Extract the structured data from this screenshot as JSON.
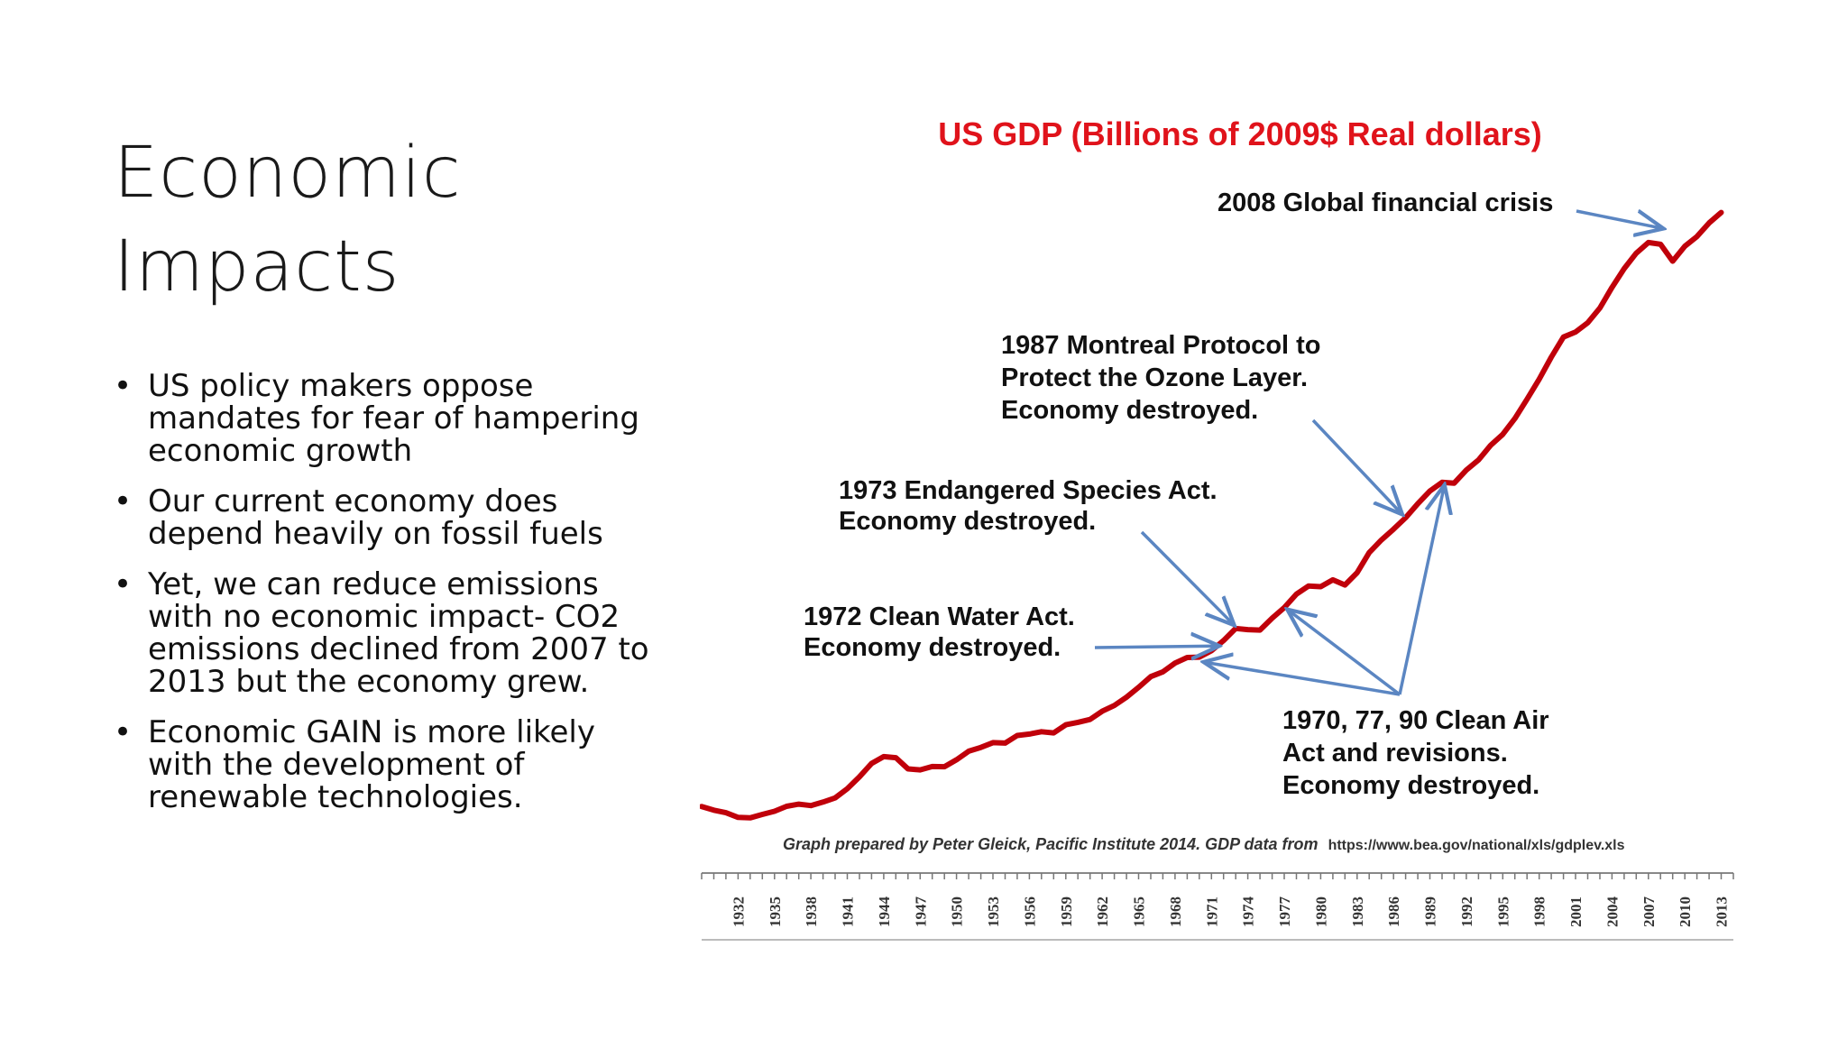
{
  "slide": {
    "title_lines": [
      "Economic",
      "Impacts"
    ],
    "bullets": [
      "US policy makers oppose mandates for fear of hampering economic growth",
      "Our current economy does depend heavily on fossil fuels",
      "Yet, we can reduce emissions with no economic impact- CO2 emissions declined from 2007 to 2013 but the economy grew.",
      "Economic GAIN is more likely with the development of renewable technologies."
    ]
  },
  "chart_data": {
    "type": "line",
    "title": "US GDP (Billions of 2009$ Real dollars)",
    "source": "Graph prepared by Peter Gleick, Pacific Institute 2014. GDP data from",
    "source_url": "https://www.bea.gov/national/xls/gdplev.xls",
    "xlim": [
      1929,
      2014
    ],
    "ylim": [
      0,
      16000
    ],
    "line_color": "#c0000a",
    "arrow_color": "#5b86c2",
    "title_color": "#e0131b",
    "tick_labels": [
      "1932",
      "1935",
      "1938",
      "1941",
      "1944",
      "1947",
      "1950",
      "1953",
      "1956",
      "1959",
      "1962",
      "1965",
      "1968",
      "1971",
      "1974",
      "1977",
      "1980",
      "1983",
      "1986",
      "1989",
      "1992",
      "1995",
      "1998",
      "2001",
      "2004",
      "2007",
      "2010",
      "2013"
    ],
    "series": [
      {
        "x": [
          1929,
          1930,
          1931,
          1932,
          1933,
          1934,
          1935,
          1936,
          1937,
          1938,
          1939,
          1940,
          1941,
          1942,
          1943,
          1944,
          1945,
          1946,
          1947,
          1948,
          1949,
          1950,
          1951,
          1952,
          1953,
          1954,
          1955,
          1956,
          1957,
          1958,
          1959,
          1960,
          1961,
          1962,
          1963,
          1964,
          1965,
          1966,
          1967,
          1968,
          1969,
          1970,
          1971,
          1972,
          1973,
          1974,
          1975,
          1976,
          1977,
          1978,
          1979,
          1980,
          1981,
          1982,
          1983,
          1984,
          1985,
          1986,
          1987,
          1988,
          1989,
          1990,
          1991,
          1992,
          1993,
          1994,
          1995,
          1996,
          1997,
          1998,
          1999,
          2000,
          2001,
          2002,
          2003,
          2004,
          2005,
          2006,
          2007,
          2008,
          2009,
          2010,
          2011,
          2012,
          2013
        ],
        "y": [
          1057,
          966,
          904,
          788,
          778,
          862,
          939,
          1060,
          1114,
          1078,
          1164,
          1266,
          1491,
          1784,
          2110,
          2279,
          2251,
          1978,
          1954,
          2036,
          2030,
          2202,
          2410,
          2503,
          2621,
          2609,
          2796,
          2832,
          2888,
          2859,
          3058,
          3119,
          3190,
          3391,
          3531,
          3734,
          3976,
          4238,
          4355,
          4570,
          4707,
          4717,
          4874,
          5123,
          5418,
          5390,
          5379,
          5670,
          5930,
          6260,
          6459,
          6443,
          6611,
          6484,
          6784,
          7277,
          7586,
          7853,
          8132,
          8475,
          8787,
          9000,
          8980,
          9300,
          9548,
          9906,
          10174,
          10561,
          11034,
          11526,
          12066,
          12560,
          12682,
          12909,
          13271,
          13774,
          14235,
          14615,
          14876,
          14834,
          14418,
          14784,
          15021,
          15355,
          15612
        ]
      }
    ],
    "annotations": [
      {
        "lines": [
          "2008 Global financial  crisis"
        ],
        "points_to": [
          2008
        ]
      },
      {
        "lines": [
          "1987 Montreal Protocol to",
          "Protect the Ozone Layer.",
          "Economy destroyed."
        ],
        "points_to": [
          1987
        ]
      },
      {
        "lines": [
          "1973 Endangered Species Act.",
          "Economy destroyed."
        ],
        "points_to": [
          1973
        ]
      },
      {
        "lines": [
          "1972 Clean Water Act.",
          "Economy destroyed."
        ],
        "points_to": [
          1972
        ]
      },
      {
        "lines": [
          "1970, 77, 90 Clean Air",
          "Act and revisions.",
          "Economy destroyed."
        ],
        "points_to": [
          1970,
          1977,
          1990
        ]
      }
    ]
  }
}
